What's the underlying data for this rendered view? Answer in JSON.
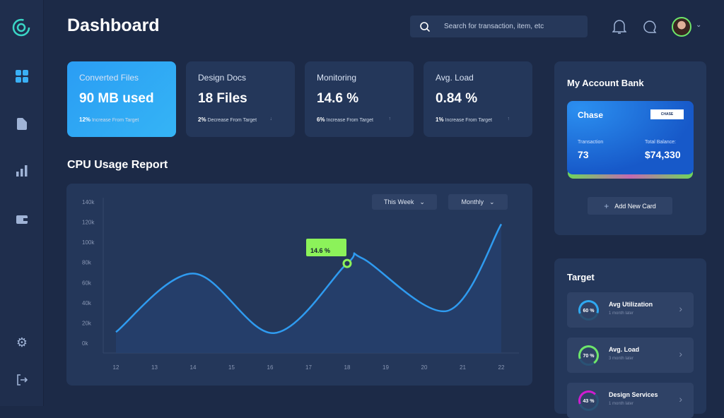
{
  "header": {
    "title": "Dashboard",
    "search_placeholder": "Search for transaction, item, etc"
  },
  "sidebar": {
    "items": [
      "logo-icon",
      "grid-icon",
      "document-icon",
      "bar-chart-icon",
      "wallet-icon",
      "gear-icon",
      "logout-icon"
    ]
  },
  "stats": [
    {
      "label": "Converted Files",
      "value": "90 MB used",
      "pct": "12%",
      "note": "Increase From Target",
      "trend": "up"
    },
    {
      "label": "Design Docs",
      "value": "18 Files",
      "pct": "2%",
      "note": "Decrease From Target",
      "trend": "down",
      "arrow": "↓"
    },
    {
      "label": "Monitoring",
      "value": "14.6 %",
      "pct": "6%",
      "note": "Increase From Target",
      "trend": "up",
      "arrow": "↑"
    },
    {
      "label": "Avg. Load",
      "value": "0.84 %",
      "pct": "1%",
      "note": "Increase From Target",
      "trend": "up",
      "arrow": "↑"
    }
  ],
  "cpu": {
    "title": "CPU Usage Report",
    "filter1": "This Week",
    "filter2": "Monthly",
    "tooltip_value": "14.6 %"
  },
  "chart_data": {
    "type": "area",
    "x": [
      12,
      13,
      14,
      15,
      16,
      17,
      18,
      19,
      20,
      21,
      22
    ],
    "curve": [
      [
        12,
        11
      ],
      [
        14,
        69
      ],
      [
        16.1,
        10
      ],
      [
        18,
        79
      ],
      [
        18.4,
        84
      ],
      [
        20.6,
        32
      ],
      [
        22,
        118
      ]
    ],
    "highlight": {
      "x": 18,
      "y": 79
    },
    "yticks": [
      "0k",
      "20k",
      "40k",
      "60k",
      "80k",
      "100k",
      "120k",
      "140k"
    ],
    "ylim": [
      0,
      140
    ],
    "xlim": [
      12,
      22
    ],
    "color": "#2f9bf0"
  },
  "account": {
    "title": "My Account Bank",
    "bank": "Chase",
    "logo": "CHASE",
    "transaction_label": "Transaction",
    "transaction": "73",
    "balance_label": "Total Balance:",
    "balance": "$74,330",
    "add_card": "Add New Card"
  },
  "target": {
    "title": "Target",
    "items": [
      {
        "name": "Avg Utilization",
        "sub": "1 month later",
        "pct": "60 %",
        "value": 60,
        "color": "#2fa8f0"
      },
      {
        "name": "Avg. Load",
        "sub": "3 month later",
        "pct": "70 %",
        "value": 70,
        "color": "#6ee66a"
      },
      {
        "name": "Design Services",
        "sub": "1 month later",
        "pct": "43 %",
        "value": 43,
        "color": "#d11bd1"
      }
    ]
  }
}
